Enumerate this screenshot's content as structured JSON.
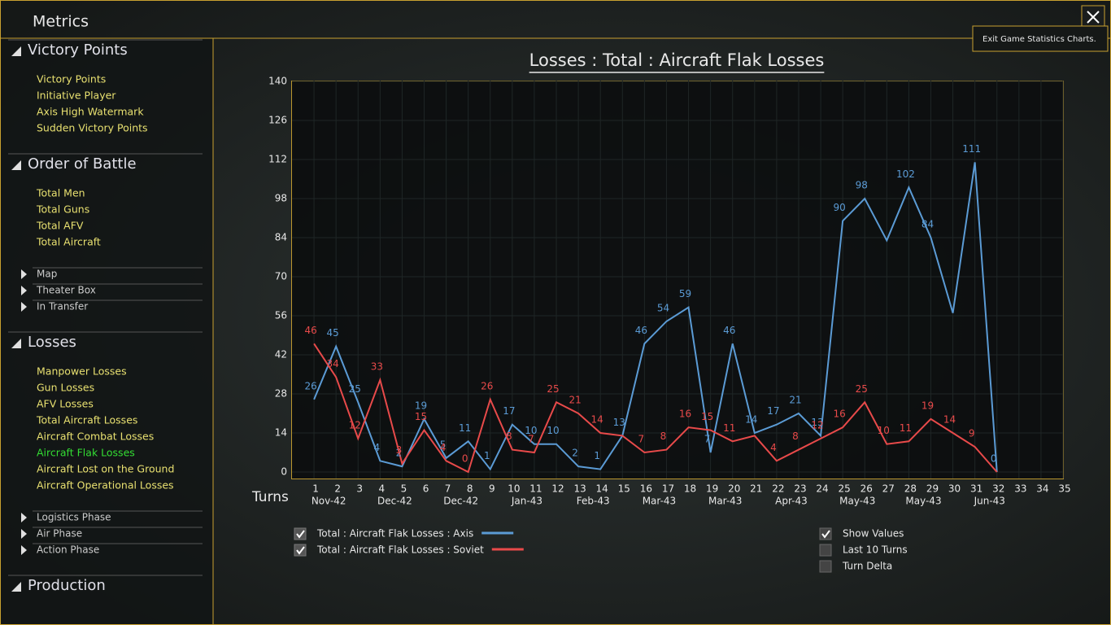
{
  "header": {
    "title": "Metrics",
    "tooltip": "Exit Game Statistics Charts."
  },
  "sidebar": {
    "sections": [
      {
        "title": "Victory Points",
        "items": [
          "Victory Points",
          "Initiative Player",
          "Axis High Watermark",
          "Sudden Victory Points"
        ]
      },
      {
        "title": "Order of Battle",
        "items": [
          "Total Men",
          "Total Guns",
          "Total AFV",
          "Total Aircraft"
        ],
        "subsections": [
          "Map",
          "Theater Box",
          "In Transfer"
        ]
      },
      {
        "title": "Losses",
        "items": [
          "Manpower Losses",
          "Gun Losses",
          "AFV Losses",
          "Total Aircraft Losses",
          "Aircraft Combat Losses",
          "Aircraft Flak Losses",
          "Aircraft Lost on the Ground",
          "Aircraft Operational Losses"
        ],
        "selected": 5,
        "subsections": [
          "Logistics Phase",
          "Air Phase",
          "Action Phase"
        ]
      },
      {
        "title": "Production"
      }
    ]
  },
  "chart_data": {
    "type": "line",
    "title": "Losses : Total : Aircraft Flak Losses",
    "xlabel": "Turns",
    "x": [
      1,
      2,
      3,
      4,
      5,
      6,
      7,
      8,
      9,
      10,
      11,
      12,
      13,
      14,
      15,
      16,
      17,
      18,
      19,
      20,
      21,
      22,
      23,
      24,
      25,
      26,
      27,
      28,
      29,
      30,
      31,
      32
    ],
    "series": [
      {
        "name": "Total : Aircraft Flak Losses : Axis",
        "color": "#5b9bd5",
        "checked": true,
        "values": [
          26,
          45,
          25,
          4,
          2,
          19,
          5,
          11,
          1,
          17,
          10,
          10,
          2,
          1,
          13,
          46,
          54,
          59,
          7,
          46,
          14,
          17,
          21,
          13,
          90,
          98,
          83,
          102,
          84,
          57,
          111,
          0
        ],
        "value_labels": [
          "26",
          "45",
          "25",
          "4",
          "2",
          "19",
          "5",
          "11",
          "1",
          "17",
          "10",
          "10",
          "2",
          "1",
          "13",
          "46",
          "54",
          "59",
          "7",
          "46",
          "14",
          "17",
          "21",
          "13",
          "90",
          "98",
          null,
          "102",
          "84",
          null,
          "111",
          "0"
        ]
      },
      {
        "name": "Total : Aircraft Flak Losses : Soviet",
        "color": "#e84a4a",
        "checked": true,
        "values": [
          46,
          34,
          12,
          33,
          3,
          15,
          4,
          0,
          26,
          8,
          7,
          25,
          21,
          14,
          13,
          7,
          8,
          16,
          15,
          11,
          13,
          4,
          8,
          12,
          16,
          25,
          10,
          11,
          19,
          14,
          9,
          0
        ],
        "value_labels": [
          "46",
          "34",
          "12",
          "33",
          "3",
          "15",
          "4",
          "0",
          "26",
          "8",
          "7",
          "25",
          "21",
          "14",
          null,
          "7",
          "8",
          "16",
          "15",
          "11",
          null,
          "4",
          "8",
          "12",
          "16",
          "25",
          "10",
          "11",
          "19",
          "14",
          "9",
          null
        ]
      }
    ],
    "xlim": [
      0,
      35
    ],
    "xticks": [
      1,
      2,
      3,
      4,
      5,
      6,
      7,
      8,
      9,
      10,
      11,
      12,
      13,
      14,
      15,
      16,
      17,
      18,
      19,
      20,
      21,
      22,
      23,
      24,
      25,
      26,
      27,
      28,
      29,
      30,
      31,
      32,
      33,
      34,
      35
    ],
    "date_labels": [
      {
        "x": 2,
        "label": "Nov-42"
      },
      {
        "x": 5,
        "label": "Dec-42"
      },
      {
        "x": 8,
        "label": "Dec-42"
      },
      {
        "x": 11,
        "label": "Jan-43"
      },
      {
        "x": 14,
        "label": "Feb-43"
      },
      {
        "x": 17,
        "label": "Mar-43"
      },
      {
        "x": 20,
        "label": "Mar-43"
      },
      {
        "x": 23,
        "label": "Apr-43"
      },
      {
        "x": 26,
        "label": "May-43"
      },
      {
        "x": 29,
        "label": "May-43"
      },
      {
        "x": 32,
        "label": "Jun-43"
      }
    ],
    "ylim": [
      0,
      140
    ],
    "yticks": [
      0,
      14,
      28,
      42,
      56,
      70,
      84,
      98,
      112,
      126,
      140
    ],
    "grid": true
  },
  "options": [
    {
      "label": "Show Values",
      "checked": true
    },
    {
      "label": "Last 10 Turns",
      "checked": false
    },
    {
      "label": "Turn Delta",
      "checked": false
    }
  ]
}
